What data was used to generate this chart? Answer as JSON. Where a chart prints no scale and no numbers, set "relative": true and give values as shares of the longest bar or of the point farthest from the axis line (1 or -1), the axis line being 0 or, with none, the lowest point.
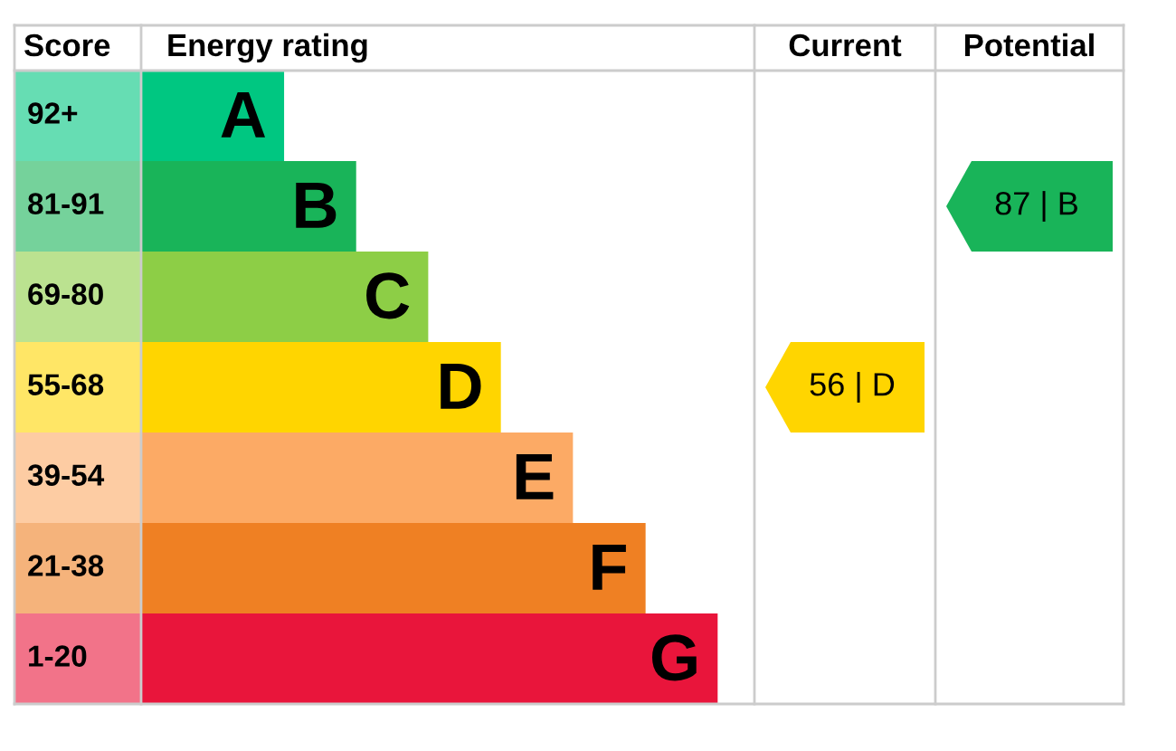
{
  "chart_data": {
    "type": "bar",
    "orientation": "horizontal",
    "relative": true,
    "categories": [
      "A",
      "B",
      "C",
      "D",
      "E",
      "F",
      "G"
    ],
    "values": [
      0.248,
      0.373,
      0.498,
      0.624,
      0.749,
      0.875,
      1
    ],
    "colors": [
      "#00c781",
      "#19b459",
      "#8dce46",
      "#ffd500",
      "#fcaa65",
      "#ef8023",
      "#e9153b"
    ],
    "annotations": [
      "Score",
      "Energy rating",
      "Current",
      "Potential",
      "92+",
      "81-91",
      "69-80",
      "55-68",
      "39-54",
      "21-38",
      "1-20",
      "56 | D",
      "87 | B"
    ]
  }
}
